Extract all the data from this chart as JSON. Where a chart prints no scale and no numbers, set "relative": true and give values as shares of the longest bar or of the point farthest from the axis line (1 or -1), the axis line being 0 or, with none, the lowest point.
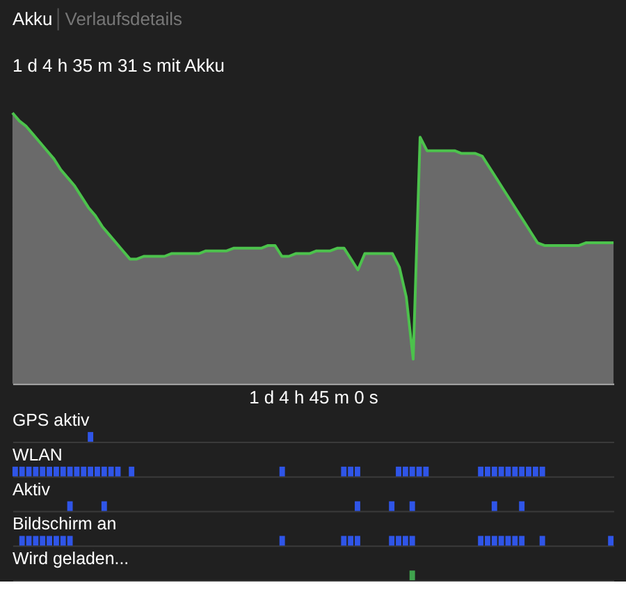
{
  "chart_data": [
    {
      "type": "area",
      "title": "1 d 4 h 35 m 31 s mit Akku",
      "xlabel": "1 d 4 h 45 m 0 s",
      "annotations": [
        "Akku",
        "Verlaufsdetails"
      ],
      "relative": true,
      "color": "#8a8a8a",
      "categories": [
        null,
        null,
        null,
        null,
        null,
        null,
        null,
        null,
        null,
        null,
        null,
        null,
        null,
        null,
        null,
        null,
        null,
        null,
        null,
        null,
        null,
        null,
        null,
        null,
        null,
        null,
        null,
        null,
        null,
        null,
        null,
        null,
        null,
        null,
        null,
        null,
        null,
        null,
        null,
        null,
        null,
        null,
        null,
        null,
        null,
        null,
        null,
        null,
        null,
        null,
        null,
        null,
        null,
        null,
        null,
        null,
        null,
        null,
        null,
        null,
        null,
        null,
        null,
        null,
        null,
        null,
        null,
        null,
        null,
        null,
        null,
        null,
        null,
        null,
        null,
        null,
        null,
        null,
        null,
        null,
        null,
        null,
        null,
        null,
        null,
        null,
        null,
        null
      ],
      "values": [
        1.0,
        0.97,
        0.95,
        0.92,
        0.89,
        0.86,
        0.83,
        0.79,
        0.76,
        0.73,
        0.69,
        0.65,
        0.62,
        0.58,
        0.55,
        0.52,
        0.49,
        0.46,
        0.46,
        0.47,
        0.47,
        0.47,
        0.47,
        0.48,
        0.48,
        0.48,
        0.48,
        0.48,
        0.49,
        0.49,
        0.49,
        0.49,
        0.5,
        0.5,
        0.5,
        0.5,
        0.5,
        0.51,
        0.51,
        0.47,
        0.47,
        0.48,
        0.48,
        0.48,
        0.49,
        0.49,
        0.49,
        0.5,
        0.5,
        0.46,
        0.42,
        0.48,
        0.48,
        0.48,
        0.48,
        0.48,
        0.43,
        0.32,
        0.09,
        0.91,
        0.86,
        0.86,
        0.86,
        0.86,
        0.86,
        0.85,
        0.85,
        0.85,
        0.84,
        0.8,
        0.76,
        0.72,
        0.68,
        0.64,
        0.6,
        0.56,
        0.52,
        0.51,
        0.51,
        0.51,
        0.51,
        0.51,
        0.51,
        0.52,
        0.52,
        0.52,
        0.52,
        0.52
      ]
    },
    {
      "type": "bar",
      "title": "GPS aktiv",
      "relative": true,
      "color": "#2f55e8",
      "categories": [
        null,
        null,
        null,
        null,
        null,
        null,
        null,
        null,
        null,
        null,
        null,
        null,
        null,
        null,
        null,
        null,
        null,
        null,
        null,
        null,
        null,
        null,
        null,
        null,
        null,
        null,
        null,
        null,
        null,
        null,
        null,
        null,
        null,
        null,
        null,
        null,
        null,
        null,
        null,
        null,
        null,
        null,
        null,
        null,
        null,
        null,
        null,
        null,
        null,
        null,
        null,
        null,
        null,
        null,
        null,
        null,
        null,
        null,
        null,
        null,
        null,
        null,
        null,
        null,
        null,
        null,
        null,
        null,
        null,
        null,
        null,
        null,
        null,
        null,
        null,
        null,
        null,
        null,
        null,
        null,
        null,
        null,
        null,
        null,
        null,
        null,
        null,
        null
      ],
      "values": [
        null,
        null,
        null,
        null,
        null,
        null,
        null,
        null,
        null,
        null,
        null,
        1,
        null,
        null,
        null,
        null,
        null,
        null,
        null,
        null,
        null,
        null,
        null,
        null,
        null,
        null,
        null,
        null,
        null,
        null,
        null,
        null,
        null,
        null,
        null,
        null,
        null,
        null,
        null,
        null,
        null,
        null,
        null,
        null,
        null,
        null,
        null,
        null,
        null,
        null,
        null,
        null,
        null,
        null,
        null,
        null,
        null,
        null,
        null,
        null,
        null,
        null,
        null,
        null,
        null,
        null,
        null,
        null,
        null,
        null,
        null,
        null,
        null,
        null,
        null,
        null,
        null,
        null,
        null,
        null,
        null,
        null,
        null,
        null,
        null,
        null,
        null,
        null
      ]
    },
    {
      "type": "bar",
      "title": "WLAN",
      "relative": true,
      "color": "#2f55e8",
      "categories": [
        null,
        null,
        null,
        null,
        null,
        null,
        null,
        null,
        null,
        null,
        null,
        null,
        null,
        null,
        null,
        null,
        null,
        null,
        null,
        null,
        null,
        null,
        null,
        null,
        null,
        null,
        null,
        null,
        null,
        null,
        null,
        null,
        null,
        null,
        null,
        null,
        null,
        null,
        null,
        null,
        null,
        null,
        null,
        null,
        null,
        null,
        null,
        null,
        null,
        null,
        null,
        null,
        null,
        null,
        null,
        null,
        null,
        null,
        null,
        null,
        null,
        null,
        null,
        null,
        null,
        null,
        null,
        null,
        null,
        null,
        null,
        null,
        null,
        null,
        null,
        null,
        null,
        null,
        null,
        null,
        null,
        null,
        null,
        null,
        null,
        null,
        null,
        null
      ],
      "values": [
        1,
        1,
        1,
        1,
        1,
        1,
        1,
        1,
        1,
        1,
        1,
        1,
        1,
        1,
        1,
        1,
        null,
        1,
        null,
        null,
        null,
        null,
        null,
        null,
        null,
        null,
        null,
        null,
        null,
        null,
        null,
        null,
        null,
        null,
        null,
        null,
        null,
        null,
        null,
        1,
        null,
        null,
        null,
        null,
        null,
        null,
        null,
        null,
        1,
        1,
        1,
        null,
        null,
        null,
        null,
        null,
        1,
        1,
        1,
        1,
        1,
        null,
        null,
        null,
        null,
        null,
        null,
        null,
        1,
        1,
        1,
        1,
        1,
        1,
        1,
        1,
        1,
        1,
        null,
        null,
        null,
        null,
        null,
        null,
        null,
        null,
        null,
        null
      ]
    },
    {
      "type": "bar",
      "title": "Aktiv",
      "relative": true,
      "color": "#2f55e8",
      "categories": [
        null,
        null,
        null,
        null,
        null,
        null,
        null,
        null,
        null,
        null,
        null,
        null,
        null,
        null,
        null,
        null,
        null,
        null,
        null,
        null,
        null,
        null,
        null,
        null,
        null,
        null,
        null,
        null,
        null,
        null,
        null,
        null,
        null,
        null,
        null,
        null,
        null,
        null,
        null,
        null,
        null,
        null,
        null,
        null,
        null,
        null,
        null,
        null,
        null,
        null,
        null,
        null,
        null,
        null,
        null,
        null,
        null,
        null,
        null,
        null,
        null,
        null,
        null,
        null,
        null,
        null,
        null,
        null,
        null,
        null,
        null,
        null,
        null,
        null,
        null,
        null,
        null,
        null,
        null,
        null,
        null,
        null,
        null,
        null,
        null,
        null,
        null,
        null
      ],
      "values": [
        null,
        null,
        null,
        null,
        null,
        null,
        null,
        null,
        1,
        null,
        null,
        null,
        null,
        1,
        null,
        null,
        null,
        null,
        null,
        null,
        null,
        null,
        null,
        null,
        null,
        null,
        null,
        null,
        null,
        null,
        null,
        null,
        null,
        null,
        null,
        null,
        null,
        null,
        null,
        null,
        null,
        null,
        null,
        null,
        null,
        null,
        null,
        null,
        null,
        null,
        1,
        null,
        null,
        null,
        null,
        1,
        null,
        null,
        1,
        null,
        null,
        null,
        null,
        null,
        null,
        null,
        null,
        null,
        null,
        null,
        1,
        null,
        null,
        null,
        1,
        null,
        null,
        null,
        null,
        null,
        null,
        null,
        null,
        null,
        null,
        null,
        null,
        null
      ]
    },
    {
      "type": "bar",
      "title": "Bildschirm an",
      "relative": true,
      "color": "#2f55e8",
      "categories": [
        null,
        null,
        null,
        null,
        null,
        null,
        null,
        null,
        null,
        null,
        null,
        null,
        null,
        null,
        null,
        null,
        null,
        null,
        null,
        null,
        null,
        null,
        null,
        null,
        null,
        null,
        null,
        null,
        null,
        null,
        null,
        null,
        null,
        null,
        null,
        null,
        null,
        null,
        null,
        null,
        null,
        null,
        null,
        null,
        null,
        null,
        null,
        null,
        null,
        null,
        null,
        null,
        null,
        null,
        null,
        null,
        null,
        null,
        null,
        null,
        null,
        null,
        null,
        null,
        null,
        null,
        null,
        null,
        null,
        null,
        null,
        null,
        null,
        null,
        null,
        null,
        null,
        null,
        null,
        null,
        null,
        null,
        null,
        null,
        null,
        null,
        null,
        null
      ],
      "values": [
        null,
        1,
        1,
        1,
        1,
        1,
        1,
        1,
        1,
        null,
        null,
        null,
        null,
        null,
        null,
        null,
        null,
        null,
        null,
        null,
        null,
        null,
        null,
        null,
        null,
        null,
        null,
        null,
        null,
        null,
        null,
        null,
        null,
        null,
        null,
        null,
        null,
        null,
        null,
        1,
        null,
        null,
        null,
        null,
        null,
        null,
        null,
        null,
        1,
        1,
        1,
        null,
        null,
        null,
        null,
        1,
        1,
        1,
        1,
        null,
        null,
        null,
        null,
        null,
        null,
        null,
        null,
        null,
        1,
        1,
        1,
        1,
        1,
        1,
        1,
        null,
        null,
        1,
        null,
        null,
        null,
        null,
        null,
        null,
        null,
        null,
        null,
        1
      ]
    },
    {
      "type": "bar",
      "title": "Wird geladen...",
      "relative": true,
      "color": "#3fa34d",
      "categories": [
        null,
        null,
        null,
        null,
        null,
        null,
        null,
        null,
        null,
        null,
        null,
        null,
        null,
        null,
        null,
        null,
        null,
        null,
        null,
        null,
        null,
        null,
        null,
        null,
        null,
        null,
        null,
        null,
        null,
        null,
        null,
        null,
        null,
        null,
        null,
        null,
        null,
        null,
        null,
        null,
        null,
        null,
        null,
        null,
        null,
        null,
        null,
        null,
        null,
        null,
        null,
        null,
        null,
        null,
        null,
        null,
        null,
        null,
        null,
        null,
        null,
        null,
        null,
        null,
        null,
        null,
        null,
        null,
        null,
        null,
        null,
        null,
        null,
        null,
        null,
        null,
        null,
        null,
        null,
        null,
        null,
        null,
        null,
        null,
        null,
        null,
        null,
        null
      ],
      "values": [
        null,
        null,
        null,
        null,
        null,
        null,
        null,
        null,
        null,
        null,
        null,
        null,
        null,
        null,
        null,
        null,
        null,
        null,
        null,
        null,
        null,
        null,
        null,
        null,
        null,
        null,
        null,
        null,
        null,
        null,
        null,
        null,
        null,
        null,
        null,
        null,
        null,
        null,
        null,
        null,
        null,
        null,
        null,
        null,
        null,
        null,
        null,
        null,
        null,
        null,
        null,
        null,
        null,
        null,
        null,
        null,
        null,
        null,
        1,
        null,
        null,
        null,
        null,
        null,
        null,
        null,
        null,
        null,
        null,
        null,
        null,
        null,
        null,
        null,
        null,
        null,
        null,
        null,
        null,
        null,
        null,
        null,
        null,
        null,
        null,
        null,
        null,
        null
      ]
    }
  ]
}
